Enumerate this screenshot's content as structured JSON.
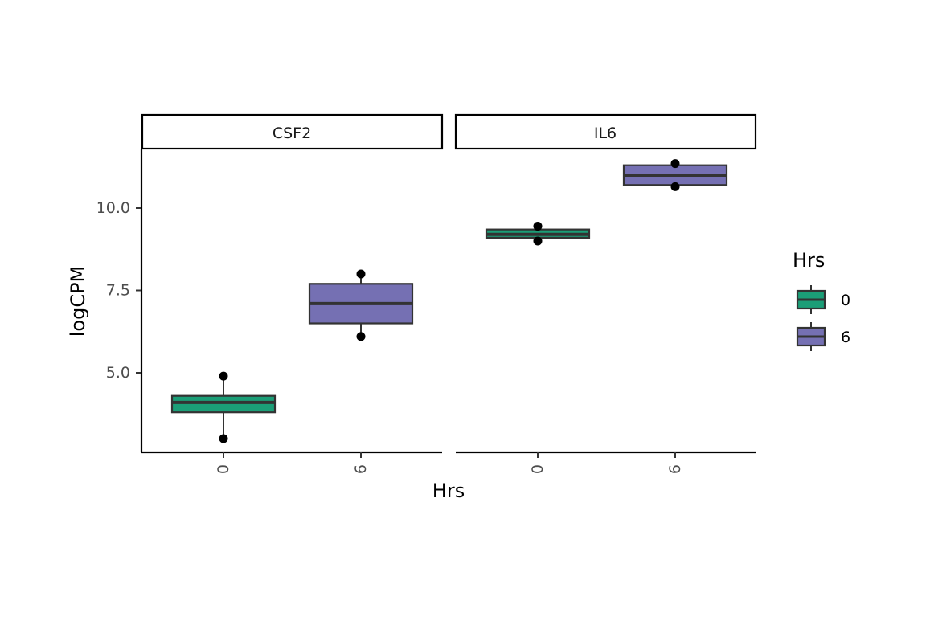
{
  "chart_data": {
    "type": "boxplot",
    "facets": [
      {
        "strip_label": "CSF2",
        "groups": [
          {
            "x": "0",
            "q1": 3.8,
            "median": 4.1,
            "q3": 4.3,
            "whisker_low": 3.0,
            "whisker_high": 4.9,
            "points": [
              3.0,
              4.9
            ]
          },
          {
            "x": "6",
            "q1": 6.5,
            "median": 7.1,
            "q3": 7.7,
            "whisker_low": 6.1,
            "whisker_high": 8.0,
            "points": [
              6.1,
              8.0
            ]
          }
        ]
      },
      {
        "strip_label": "IL6",
        "groups": [
          {
            "x": "0",
            "q1": 9.1,
            "median": 9.2,
            "q3": 9.35,
            "whisker_low": 9.0,
            "whisker_high": 9.45,
            "points": [
              9.0,
              9.45
            ]
          },
          {
            "x": "6",
            "q1": 10.7,
            "median": 11.0,
            "q3": 11.3,
            "whisker_low": 10.65,
            "whisker_high": 11.35,
            "points": [
              10.65,
              11.35
            ]
          }
        ]
      }
    ],
    "categories": [
      "0",
      "6"
    ],
    "xlabel": "Hrs",
    "ylabel": "logCPM",
    "yticks": [
      "5.0",
      "7.5",
      "10.0"
    ],
    "ylim": [
      2.6,
      11.8
    ],
    "legend": {
      "title": "Hrs",
      "placement": "right",
      "entries": [
        {
          "label": "0",
          "color": "#1b9e77"
        },
        {
          "label": "6",
          "color": "#7570b3"
        }
      ]
    },
    "colors": {
      "0": "#1b9e77",
      "6": "#7570b3",
      "outline": "#333333",
      "point": "#000000"
    }
  }
}
